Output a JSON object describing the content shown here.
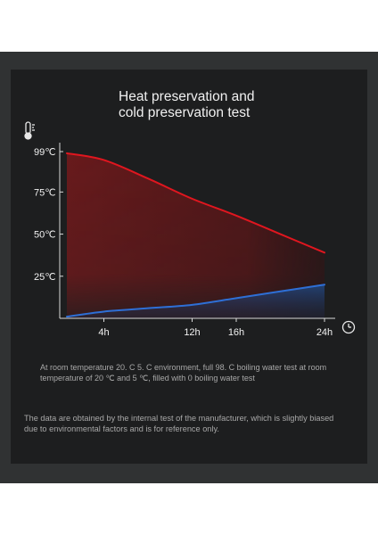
{
  "chart_data": {
    "type": "area",
    "title_lines": [
      "Heat preservation and",
      "cold preservation test"
    ],
    "xlabel": "",
    "ylabel": "",
    "x": [
      0,
      4,
      8,
      12,
      16,
      20,
      24
    ],
    "x_ticks": [
      4,
      12,
      16,
      24
    ],
    "x_tick_labels": [
      "4h",
      "12h",
      "16h",
      "24h"
    ],
    "y_ticks": [
      25,
      50,
      75,
      99
    ],
    "y_tick_labels": [
      "25℃",
      "50℃",
      "75℃",
      "99℃"
    ],
    "xlim": [
      0,
      24
    ],
    "ylim": [
      0,
      100
    ],
    "series": [
      {
        "color": "#e0161f",
        "values": [
          98,
          94,
          83,
          71,
          61,
          50,
          39
        ]
      },
      {
        "color": "#2e6fd6",
        "values": [
          1,
          4,
          6,
          8,
          12,
          16,
          20
        ]
      }
    ],
    "grid": false,
    "legend": "none"
  },
  "icons": {
    "thermometer": "thermometer-icon",
    "clock": "clock-icon"
  },
  "notes": {
    "line1": "At room temperature 20. C 5. C environment, full 98. C boiling water test at room temperature of 20 ℃ and 5 ℃, filled with 0 boiling water test",
    "line2": "The data are obtained by the internal test of the manufacturer, which is slightly biased due to environmental factors and is for reference only."
  }
}
